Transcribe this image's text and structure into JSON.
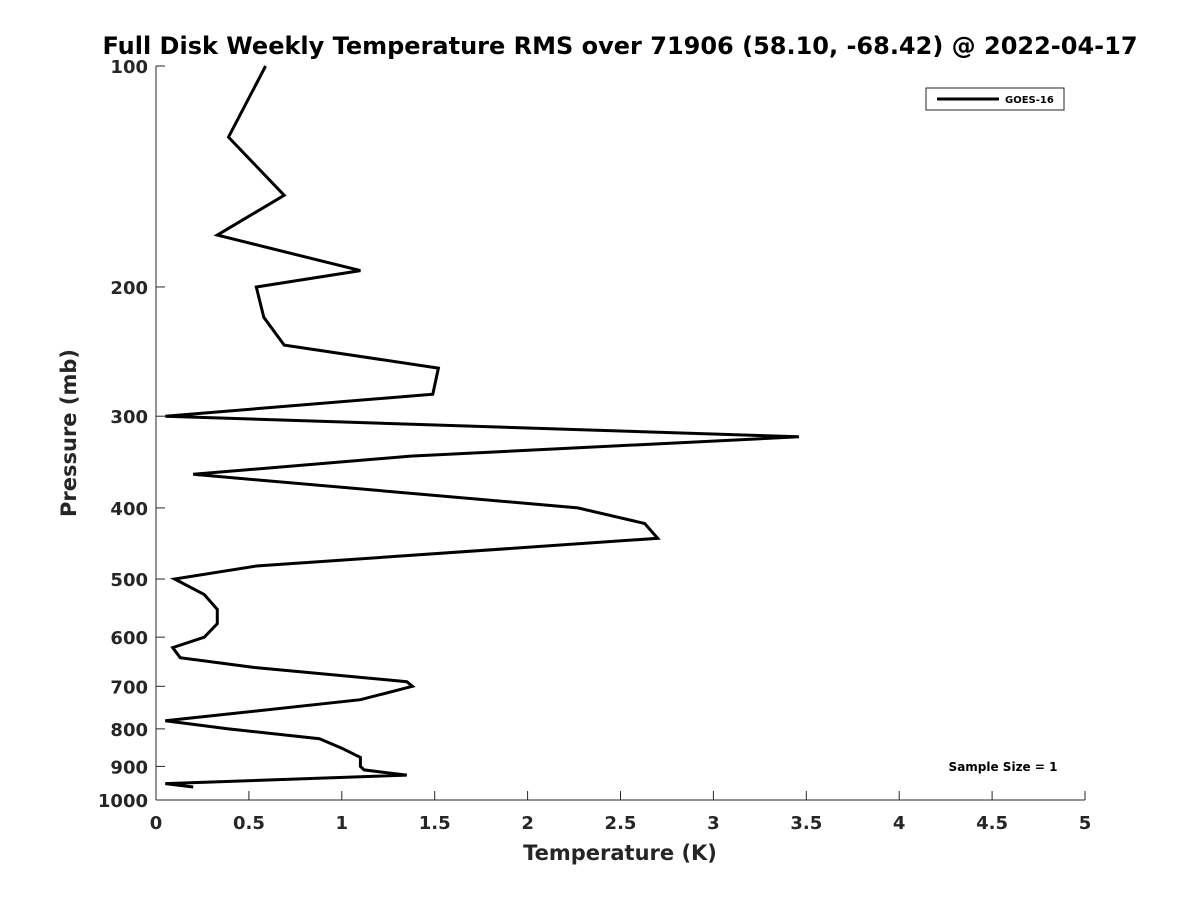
{
  "chart_data": {
    "type": "line",
    "title": "Full Disk Weekly Temperature RMS over 71906 (58.10, -68.42) @ 2022-04-17",
    "xlabel": "Temperature (K)",
    "ylabel": "Pressure (mb)",
    "xlim": [
      0,
      5
    ],
    "ylim": [
      100,
      1000
    ],
    "y_scale": "log",
    "y_reversed": true,
    "grid": false,
    "legend_position": "top-right",
    "x_ticks": [
      "0",
      "0.5",
      "1",
      "1.5",
      "2",
      "2.5",
      "3",
      "3.5",
      "4",
      "4.5",
      "5"
    ],
    "y_ticks": [
      "100",
      "200",
      "300",
      "400",
      "500",
      "600",
      "700",
      "800",
      "900",
      "1000"
    ],
    "annotation": "Sample Size = 1",
    "series": [
      {
        "name": "GOES-16",
        "color": "#000000",
        "x": [
          0.59,
          0.39,
          0.69,
          0.33,
          1.1,
          0.54,
          0.58,
          0.69,
          1.52,
          1.49,
          0.05,
          3.46,
          1.37,
          0.2,
          2.27,
          2.63,
          2.7,
          0.54,
          0.1,
          0.26,
          0.33,
          0.33,
          0.26,
          0.09,
          0.13,
          0.53,
          1.35,
          1.38,
          1.1,
          0.05,
          0.39,
          0.88,
          1.0,
          1.1,
          1.1,
          1.12,
          1.35,
          0.05,
          0.2
        ],
        "y": [
          100,
          125,
          150,
          170,
          190,
          200,
          220,
          240,
          258,
          280,
          300,
          320,
          340,
          360,
          400,
          420,
          440,
          480,
          500,
          525,
          550,
          575,
          600,
          620,
          640,
          660,
          690,
          700,
          730,
          780,
          800,
          825,
          850,
          875,
          900,
          910,
          925,
          950,
          960
        ]
      }
    ]
  }
}
